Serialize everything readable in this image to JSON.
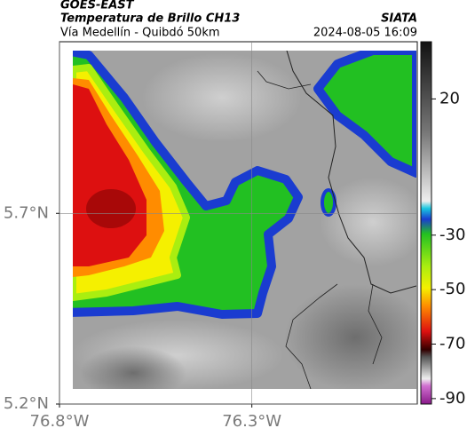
{
  "header": {
    "satellite": "GOES-EAST",
    "product": "Temperatura de Brillo CH13",
    "source": "SIATA",
    "region": "Vía Medellín - Quibdó 50km",
    "datetime": "2024-08-05 16:09"
  },
  "map": {
    "xlim": [
      -76.8,
      -75.87
    ],
    "ylim": [
      5.2,
      6.15
    ],
    "xticks": [
      {
        "value": -76.8,
        "label": "76.8°W"
      },
      {
        "value": -76.3,
        "label": "76.3°W"
      }
    ],
    "yticks": [
      {
        "value": 5.7,
        "label": "5.7°N"
      },
      {
        "value": 5.2,
        "label": "5.2°N"
      }
    ]
  },
  "colorbar": {
    "clim": [
      -92,
      41
    ],
    "ticks": [
      20,
      -30,
      -50,
      -70,
      -90
    ]
  }
}
